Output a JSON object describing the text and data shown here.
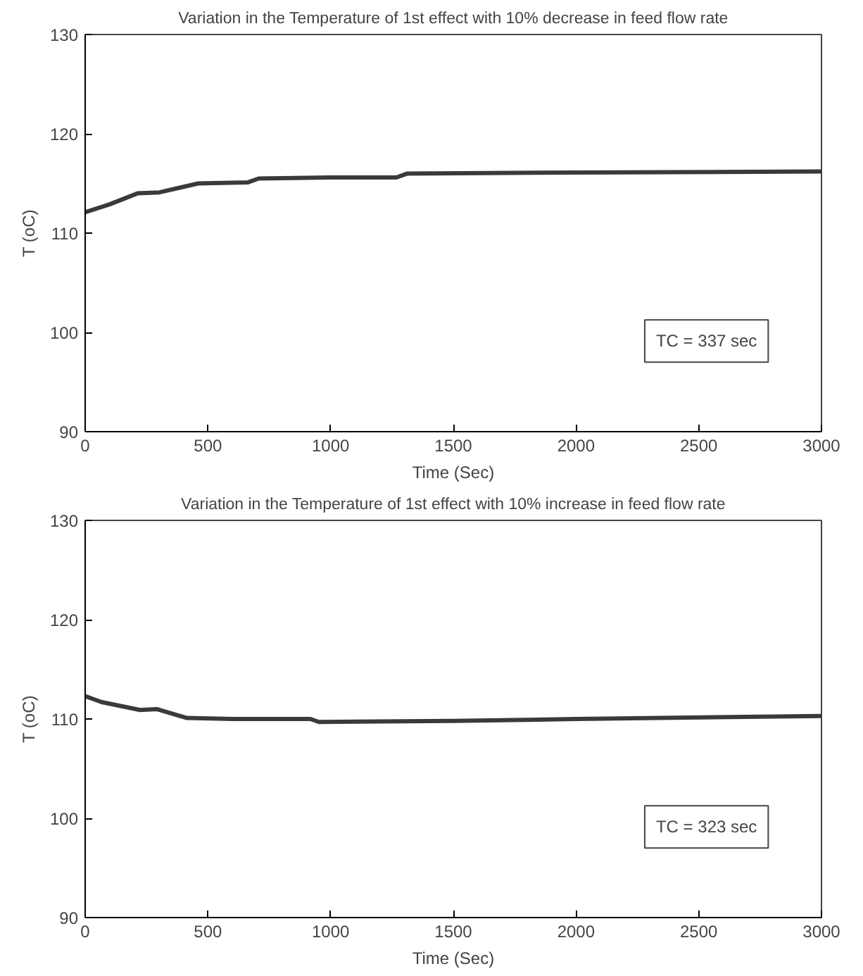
{
  "chart_data": [
    {
      "type": "line",
      "title": "Variation in the Temperature of 1st effect with 10% decrease in feed flow rate",
      "xlabel": "Time (Sec)",
      "ylabel": "T (oC)",
      "series": [
        {
          "color": "#3a3a3a",
          "x": [
            0,
            100,
            213,
            303,
            460,
            662,
            707,
            1000,
            1268,
            1313,
            2000,
            3000
          ],
          "values": [
            112.1,
            112.9,
            114,
            114.1,
            115,
            115.1,
            115.5,
            115.6,
            115.6,
            116,
            116.1,
            116.2
          ]
        }
      ],
      "xlim": [
        0,
        3000
      ],
      "xticks": [
        0,
        500,
        1000,
        1500,
        2000,
        2500,
        3000
      ],
      "ylim": [
        90,
        130
      ],
      "yticks": [
        90,
        100,
        110,
        120,
        130
      ],
      "grid": false,
      "annotations": [
        "TC = 337 sec"
      ]
    },
    {
      "type": "line",
      "title": "Variation in the Temperature of 1st effect with 10% increase in feed flow rate",
      "xlabel": "Time (Sec)",
      "ylabel": "T (oC)",
      "series": [
        {
          "color": "#3a3a3a",
          "x": [
            0,
            67,
            224,
            291,
            414,
            600,
            918,
            952,
            1500,
            2000,
            3000
          ],
          "values": [
            112.3,
            111.7,
            110.9,
            111,
            110.1,
            110,
            110,
            109.7,
            109.8,
            110,
            110.3
          ]
        }
      ],
      "xlim": [
        0,
        3000
      ],
      "xticks": [
        0,
        500,
        1000,
        1500,
        2000,
        2500,
        3000
      ],
      "ylim": [
        90,
        130
      ],
      "yticks": [
        90,
        100,
        110,
        120,
        130
      ],
      "grid": false,
      "annotations": [
        "TC = 323 sec"
      ]
    }
  ]
}
